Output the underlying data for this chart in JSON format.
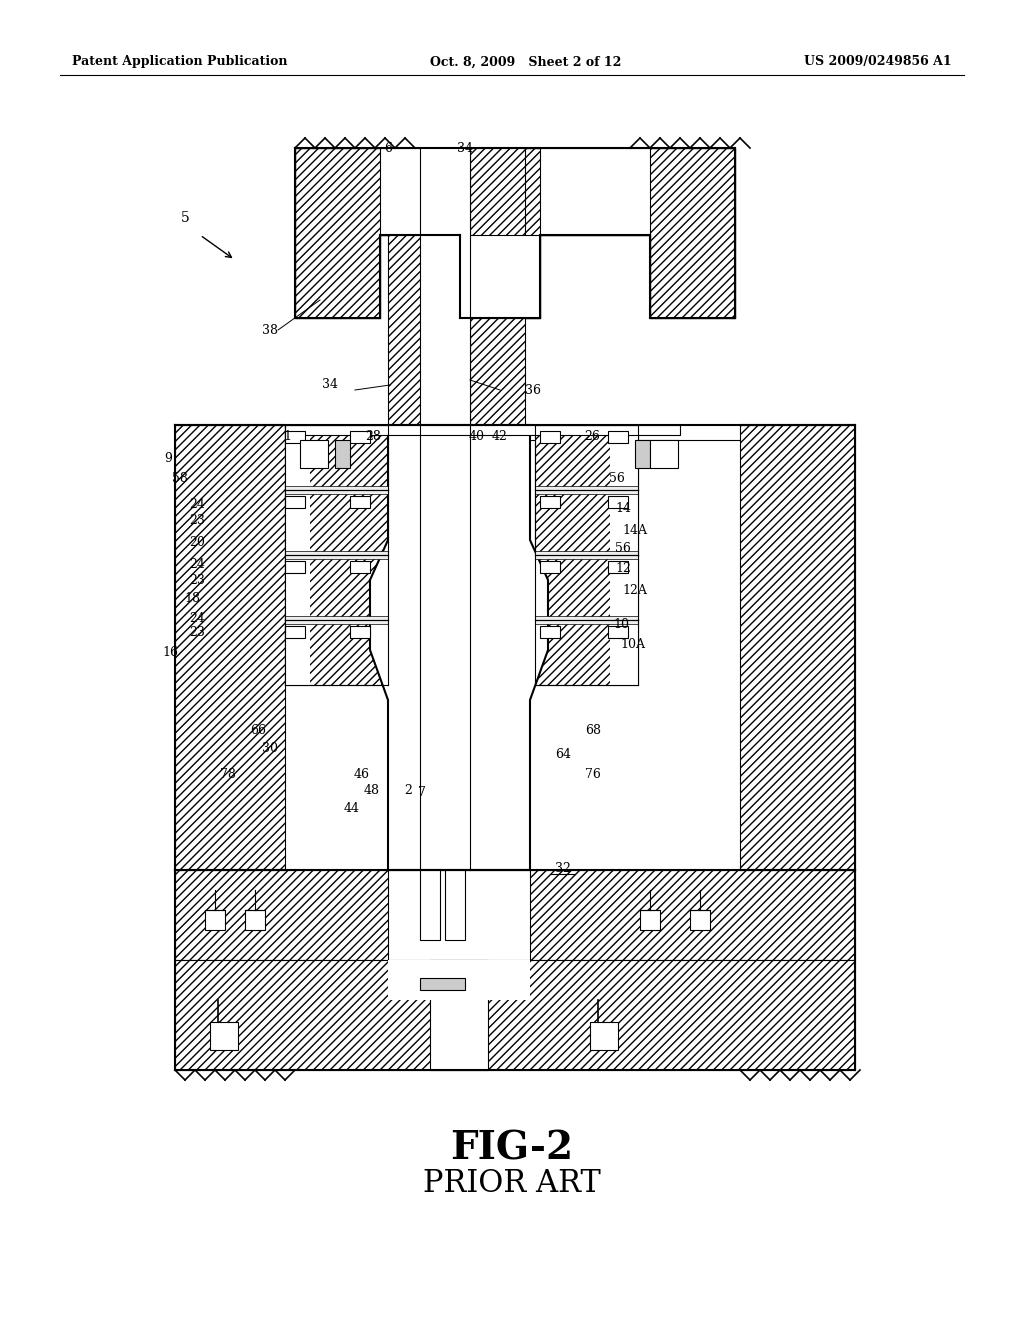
{
  "background_color": "#ffffff",
  "header_left": "Patent Application Publication",
  "header_center": "Oct. 8, 2009   Sheet 2 of 12",
  "header_right": "US 2009/0249856 A1",
  "figure_label": "FIG-2",
  "figure_sublabel": "PRIOR ART",
  "line_color": "#000000"
}
